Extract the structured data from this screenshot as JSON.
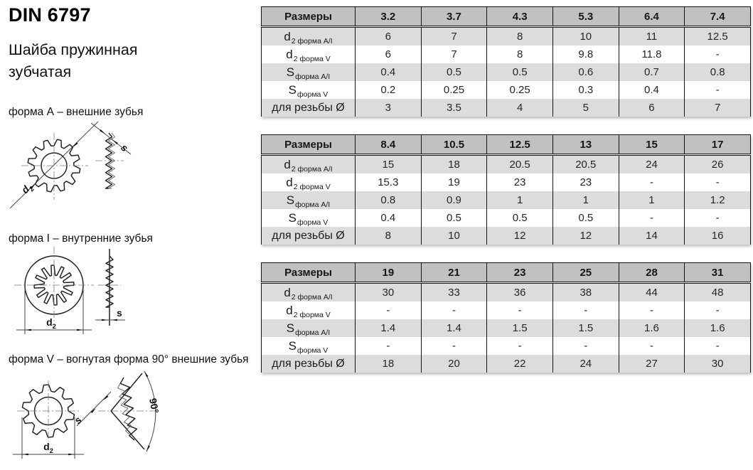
{
  "page": {
    "title": "DIN 6797",
    "subtitle": "Шайба пружинная зубчатая"
  },
  "forms": [
    {
      "caption": "форма А – внешние зубья"
    },
    {
      "caption": "форма I – внутренние зубья"
    },
    {
      "caption": "форма V – вогнутая форма 90° внешние зубья"
    }
  ],
  "drawings": {
    "d2_main": "d",
    "d2_sub": "2",
    "s": "s",
    "angle_90": "90°"
  },
  "tables": [
    {
      "header": [
        "Размеры",
        "3.2",
        "3.7",
        "4.3",
        "5.3",
        "6.4",
        "7.4"
      ],
      "rows": [
        {
          "label_main": "d",
          "label_sub": "2 форма A/I",
          "values": [
            "6",
            "7",
            "8",
            "10",
            "11",
            "12.5"
          ]
        },
        {
          "label_main": "d",
          "label_sub": "2 форма V",
          "values": [
            "6",
            "7",
            "8",
            "9.8",
            "11.8",
            "-"
          ]
        },
        {
          "label_main": "S",
          "label_sub": "форма A/I",
          "values": [
            "0.4",
            "0.5",
            "0.5",
            "0.6",
            "0.7",
            "0.8"
          ]
        },
        {
          "label_main": "S",
          "label_sub": "форма V",
          "values": [
            "0.2",
            "0.25",
            "0.25",
            "0.3",
            "0.4",
            "-"
          ]
        },
        {
          "label_main": "для резьбы Ø",
          "label_sub": "",
          "values": [
            "3",
            "3.5",
            "4",
            "5",
            "6",
            "7"
          ]
        }
      ]
    },
    {
      "header": [
        "Размеры",
        "8.4",
        "10.5",
        "12.5",
        "13",
        "15",
        "17"
      ],
      "rows": [
        {
          "label_main": "d",
          "label_sub": "2 форма A/I",
          "values": [
            "15",
            "18",
            "20.5",
            "20.5",
            "24",
            "26"
          ]
        },
        {
          "label_main": "d",
          "label_sub": "2 форма V",
          "values": [
            "15.3",
            "19",
            "23",
            "23",
            "-",
            "-"
          ]
        },
        {
          "label_main": "S",
          "label_sub": "форма A/I",
          "values": [
            "0.8",
            "0.9",
            "1",
            "1",
            "1",
            "1.2"
          ]
        },
        {
          "label_main": "S",
          "label_sub": "форма V",
          "values": [
            "0.4",
            "0.5",
            "0.5",
            "0.5",
            "-",
            "-"
          ]
        },
        {
          "label_main": "для резьбы Ø",
          "label_sub": "",
          "values": [
            "8",
            "10",
            "12",
            "12",
            "14",
            "16"
          ]
        }
      ]
    },
    {
      "header": [
        "Размеры",
        "19",
        "21",
        "23",
        "25",
        "28",
        "31"
      ],
      "rows": [
        {
          "label_main": "d",
          "label_sub": "2 форма A/I",
          "values": [
            "30",
            "33",
            "36",
            "38",
            "44",
            "48"
          ]
        },
        {
          "label_main": "d",
          "label_sub": "2 форма V",
          "values": [
            "-",
            "-",
            "-",
            "-",
            "-",
            "-"
          ]
        },
        {
          "label_main": "S",
          "label_sub": "форма A/I",
          "values": [
            "1.4",
            "1.4",
            "1.5",
            "1.5",
            "1.6",
            "1.6"
          ]
        },
        {
          "label_main": "S",
          "label_sub": "форма V",
          "values": [
            "-",
            "-",
            "-",
            "-",
            "-",
            "-"
          ]
        },
        {
          "label_main": "для резьбы Ø",
          "label_sub": "",
          "values": [
            "18",
            "20",
            "22",
            "24",
            "27",
            "30"
          ]
        }
      ]
    }
  ]
}
